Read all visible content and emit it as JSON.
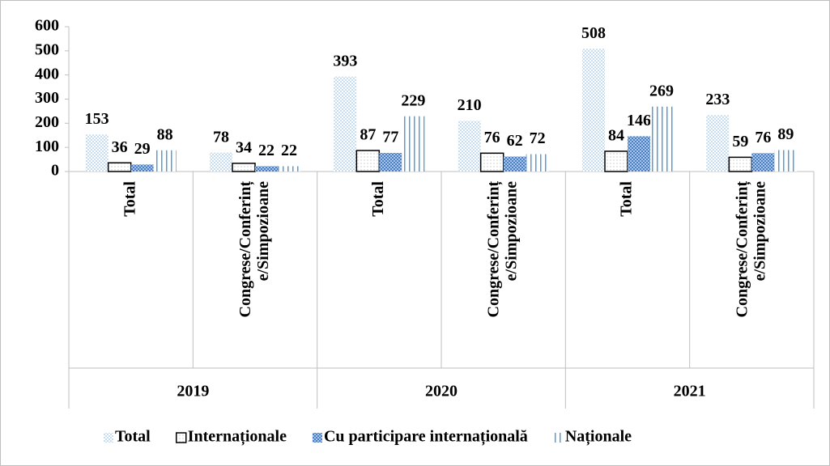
{
  "chart_data": {
    "type": "bar",
    "categories": [
      "Total",
      "Congrese/Conferințe/Simpozioane",
      "Total",
      "Congrese/Conferințe/Simpozioane",
      "Total",
      "Congrese/Conferințe/Simpozioane"
    ],
    "category_groups": [
      "2019",
      "2020",
      "2021"
    ],
    "series": [
      {
        "name": "Total",
        "color": "#9dc3e6",
        "pattern": "dots",
        "values": [
          153,
          78,
          393,
          210,
          508,
          233
        ]
      },
      {
        "name": "Internaționale",
        "color": "#ffffff",
        "pattern": "outline",
        "values": [
          36,
          34,
          87,
          76,
          84,
          59
        ]
      },
      {
        "name": "Cu participare internațională",
        "color": "#4a7fc1",
        "pattern": "cross",
        "values": [
          29,
          22,
          77,
          62,
          146,
          76
        ]
      },
      {
        "name": "Naționale",
        "color": "#5b9bd5",
        "pattern": "vlines",
        "values": [
          88,
          22,
          229,
          72,
          269,
          89
        ]
      }
    ],
    "ylim": [
      0,
      600
    ],
    "yticks": [
      0,
      100,
      200,
      300,
      400,
      500,
      600
    ],
    "legend": "bottom"
  }
}
